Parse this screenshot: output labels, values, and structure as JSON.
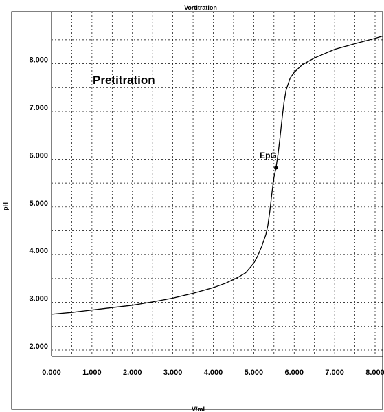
{
  "chart_data": {
    "type": "line",
    "title": "Vortitration",
    "xlabel": "V/mL",
    "ylabel": "pH",
    "xlim": [
      0,
      8.0
    ],
    "ylim": [
      2.0,
      8.6
    ],
    "x_ticks": [
      0,
      1,
      2,
      3,
      4,
      5,
      6,
      7,
      8
    ],
    "y_ticks": [
      2,
      3,
      4,
      5,
      6,
      7,
      8
    ],
    "x_tick_labels": [
      "0.000",
      "1.000",
      "2.000",
      "3.000",
      "4.000",
      "5.000",
      "6.000",
      "7.000",
      "8.000"
    ],
    "y_tick_labels": [
      "2.000",
      "3.000",
      "4.000",
      "5.000",
      "6.000",
      "7.000",
      "8.000"
    ],
    "grid": true,
    "annotations": {
      "region_label": "Pretitration",
      "point_label": "EpG"
    },
    "equivalence_point": {
      "x": 5.55,
      "y": 5.82
    },
    "series": [
      {
        "x": [
          0.0,
          0.5,
          1.0,
          1.5,
          2.0,
          2.5,
          3.0,
          3.5,
          4.0,
          4.3,
          4.6,
          4.8,
          5.0,
          5.1,
          5.2,
          5.3,
          5.35,
          5.4,
          5.45,
          5.5,
          5.55,
          5.6,
          5.65,
          5.7,
          5.75,
          5.8,
          5.9,
          6.0,
          6.2,
          6.5,
          7.0,
          7.5,
          8.0,
          8.2
        ],
        "y": [
          2.75,
          2.79,
          2.84,
          2.89,
          2.94,
          3.01,
          3.09,
          3.19,
          3.31,
          3.4,
          3.52,
          3.62,
          3.82,
          3.98,
          4.18,
          4.42,
          4.62,
          4.92,
          5.3,
          5.62,
          5.82,
          6.1,
          6.45,
          6.85,
          7.2,
          7.45,
          7.7,
          7.82,
          7.98,
          8.12,
          8.3,
          8.42,
          8.53,
          8.58
        ]
      }
    ]
  }
}
